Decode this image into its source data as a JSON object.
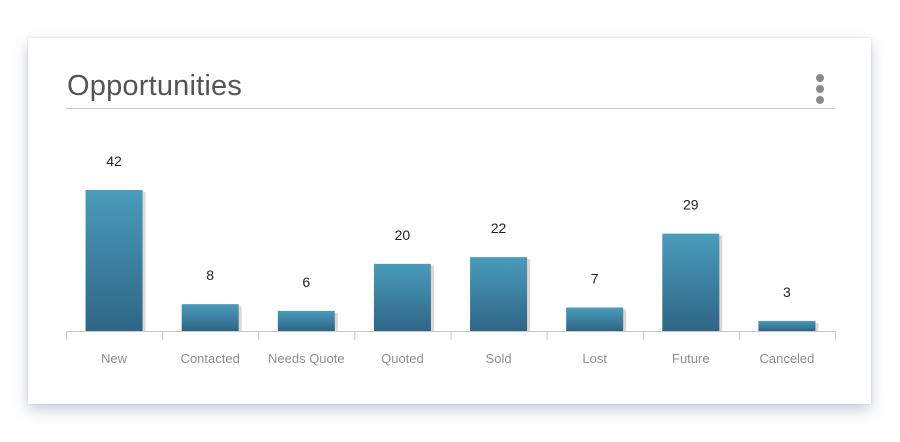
{
  "card": {
    "title": "Opportunities",
    "menu_icon": "kebab-vertical-icon"
  },
  "colors": {
    "bar_top": "#4a9bbb",
    "bar_bottom": "#2f6585",
    "bar_shadow": "#d9d9d9",
    "axis": "#c8c8c8"
  },
  "chart_data": {
    "type": "bar",
    "title": "Opportunities",
    "xlabel": "",
    "ylabel": "",
    "categories": [
      "New",
      "Contacted",
      "Needs Quote",
      "Quoted",
      "Sold",
      "Lost",
      "Future",
      "Canceled"
    ],
    "values": [
      42,
      8,
      6,
      20,
      22,
      7,
      29,
      3
    ],
    "data_labels": [
      "42",
      "8",
      "6",
      "20",
      "22",
      "7",
      "29",
      "3"
    ],
    "ylim": [
      0,
      42
    ],
    "grid": false,
    "legend": "none"
  }
}
